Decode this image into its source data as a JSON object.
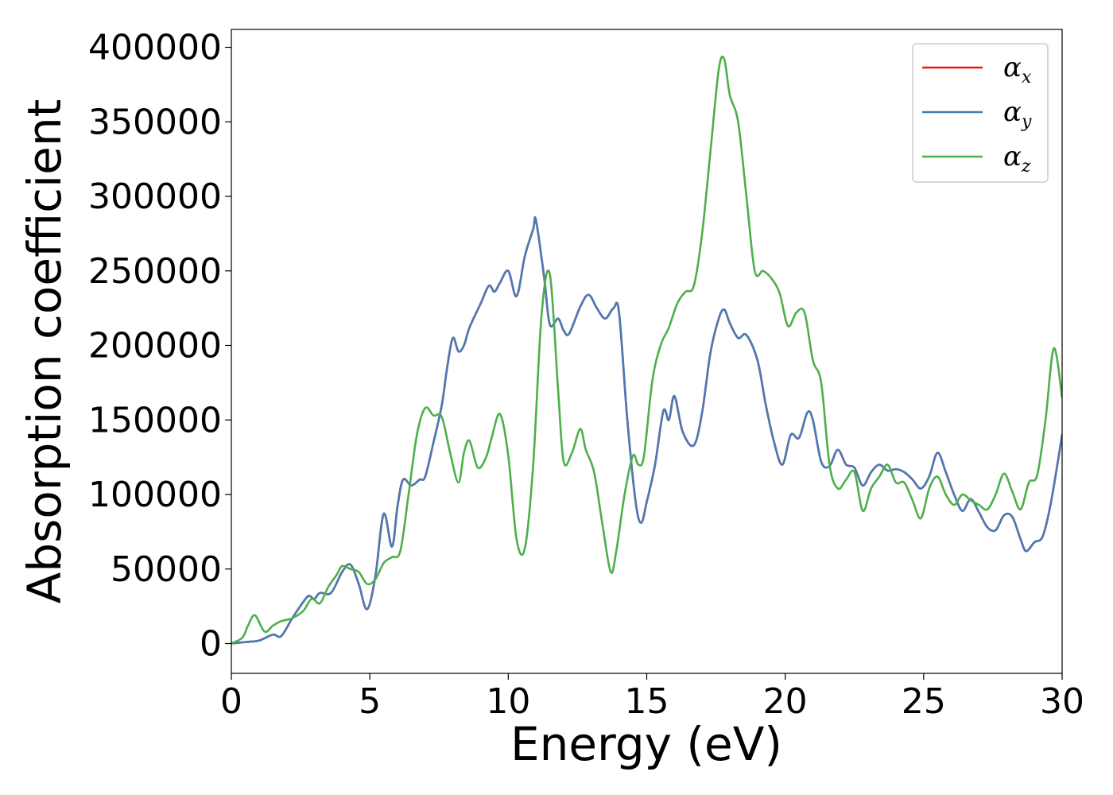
{
  "chart_data": {
    "type": "line",
    "xlabel": "Energy (eV)",
    "ylabel": "Absorption coefficient",
    "xlim": [
      0,
      30
    ],
    "ylim": [
      -20000,
      412000
    ],
    "xticks": [
      0,
      5,
      10,
      15,
      20,
      25,
      30
    ],
    "yticks": [
      0,
      50000,
      100000,
      150000,
      200000,
      250000,
      300000,
      350000,
      400000
    ],
    "grid": false,
    "legend_position": "top-right",
    "series": [
      {
        "name": "αx",
        "symbol": "α",
        "subscript": "x",
        "color": "#e41a1c",
        "x": [
          0,
          0.5,
          1,
          1.5,
          1.8,
          2.2,
          2.6,
          2.8,
          3.0,
          3.2,
          3.6,
          4.0,
          4.3,
          4.6,
          4.9,
          5.2,
          5.5,
          5.8,
          6.0,
          6.2,
          6.5,
          6.8,
          7.0,
          7.3,
          7.6,
          7.8,
          8.0,
          8.2,
          8.4,
          8.6,
          9.0,
          9.3,
          9.5,
          9.7,
          10.0,
          10.3,
          10.6,
          10.9,
          11.0,
          11.3,
          11.5,
          11.8,
          12.0,
          12.2,
          12.6,
          12.9,
          13.2,
          13.5,
          13.8,
          14.0,
          14.3,
          14.6,
          14.8,
          15.0,
          15.3,
          15.6,
          15.8,
          16.0,
          16.3,
          16.7,
          17.0,
          17.3,
          17.6,
          17.8,
          18.0,
          18.3,
          18.6,
          19.0,
          19.3,
          19.6,
          19.9,
          20.2,
          20.5,
          20.8,
          21.0,
          21.3,
          21.6,
          21.9,
          22.2,
          22.5,
          22.8,
          23.1,
          23.4,
          23.7,
          24.0,
          24.3,
          24.6,
          24.9,
          25.2,
          25.5,
          25.8,
          26.1,
          26.4,
          26.7,
          27.0,
          27.3,
          27.6,
          27.9,
          28.2,
          28.5,
          28.7,
          29.0,
          29.3,
          29.6,
          30.0
        ],
        "y": [
          0,
          1000,
          2000,
          6000,
          5000,
          17000,
          28000,
          32000,
          30000,
          34000,
          34000,
          48000,
          53000,
          40000,
          23000,
          45000,
          87000,
          65000,
          92000,
          110000,
          106000,
          110000,
          112000,
          135000,
          160000,
          186000,
          205000,
          196000,
          200000,
          212000,
          228000,
          240000,
          236000,
          242000,
          250000,
          233000,
          260000,
          278000,
          284000,
          245000,
          214000,
          218000,
          210000,
          208000,
          226000,
          234000,
          225000,
          218000,
          225000,
          222000,
          150000,
          95000,
          81000,
          95000,
          120000,
          156000,
          150000,
          166000,
          142000,
          133000,
          155000,
          195000,
          218000,
          224000,
          215000,
          205000,
          207000,
          190000,
          160000,
          135000,
          120000,
          140000,
          138000,
          155000,
          150000,
          122000,
          119000,
          130000,
          120000,
          118000,
          106000,
          115000,
          120000,
          116000,
          117000,
          115000,
          110000,
          104000,
          112000,
          128000,
          115000,
          100000,
          89000,
          97000,
          88000,
          78000,
          76000,
          86000,
          85000,
          70000,
          62000,
          68000,
          72000,
          95000,
          140000
        ]
      },
      {
        "name": "αy",
        "symbol": "α",
        "subscript": "y",
        "color": "#4a7ab5",
        "x": [
          0,
          0.5,
          1,
          1.5,
          1.8,
          2.2,
          2.6,
          2.8,
          3.0,
          3.2,
          3.6,
          4.0,
          4.3,
          4.6,
          4.9,
          5.2,
          5.5,
          5.8,
          6.0,
          6.2,
          6.5,
          6.8,
          7.0,
          7.3,
          7.6,
          7.8,
          8.0,
          8.2,
          8.4,
          8.6,
          9.0,
          9.3,
          9.5,
          9.7,
          10.0,
          10.3,
          10.6,
          10.9,
          11.0,
          11.3,
          11.5,
          11.8,
          12.0,
          12.2,
          12.6,
          12.9,
          13.2,
          13.5,
          13.8,
          14.0,
          14.3,
          14.6,
          14.8,
          15.0,
          15.3,
          15.6,
          15.8,
          16.0,
          16.3,
          16.7,
          17.0,
          17.3,
          17.6,
          17.8,
          18.0,
          18.3,
          18.6,
          19.0,
          19.3,
          19.6,
          19.9,
          20.2,
          20.5,
          20.8,
          21.0,
          21.3,
          21.6,
          21.9,
          22.2,
          22.5,
          22.8,
          23.1,
          23.4,
          23.7,
          24.0,
          24.3,
          24.6,
          24.9,
          25.2,
          25.5,
          25.8,
          26.1,
          26.4,
          26.7,
          27.0,
          27.3,
          27.6,
          27.9,
          28.2,
          28.5,
          28.7,
          29.0,
          29.3,
          29.6,
          30.0
        ],
        "y": [
          0,
          1000,
          2000,
          6000,
          5000,
          17000,
          28000,
          32000,
          30000,
          34000,
          34000,
          48000,
          53000,
          40000,
          23000,
          45000,
          87000,
          65000,
          92000,
          110000,
          106000,
          110000,
          112000,
          135000,
          160000,
          186000,
          205000,
          196000,
          200000,
          212000,
          228000,
          240000,
          236000,
          242000,
          250000,
          233000,
          260000,
          278000,
          284000,
          245000,
          214000,
          218000,
          210000,
          208000,
          226000,
          234000,
          225000,
          218000,
          225000,
          222000,
          150000,
          95000,
          81000,
          95000,
          120000,
          156000,
          150000,
          166000,
          142000,
          133000,
          155000,
          195000,
          218000,
          224000,
          215000,
          205000,
          207000,
          190000,
          160000,
          135000,
          120000,
          140000,
          138000,
          155000,
          150000,
          122000,
          119000,
          130000,
          120000,
          118000,
          106000,
          115000,
          120000,
          116000,
          117000,
          115000,
          110000,
          104000,
          112000,
          128000,
          115000,
          100000,
          89000,
          97000,
          88000,
          78000,
          76000,
          86000,
          85000,
          70000,
          62000,
          68000,
          72000,
          95000,
          140000
        ]
      },
      {
        "name": "αz",
        "symbol": "α",
        "subscript": "z",
        "color": "#4daf4a",
        "x": [
          0,
          0.4,
          0.6,
          0.85,
          1.2,
          1.5,
          1.8,
          2.2,
          2.6,
          2.9,
          3.2,
          3.5,
          3.8,
          4.0,
          4.3,
          4.6,
          4.9,
          5.2,
          5.5,
          5.8,
          6.1,
          6.4,
          6.7,
          7.0,
          7.3,
          7.6,
          7.9,
          8.2,
          8.4,
          8.6,
          8.9,
          9.2,
          9.4,
          9.7,
          10.0,
          10.3,
          10.6,
          10.9,
          11.2,
          11.5,
          11.8,
          12.0,
          12.3,
          12.6,
          12.8,
          13.1,
          13.4,
          13.7,
          13.9,
          14.2,
          14.5,
          14.7,
          14.9,
          15.2,
          15.5,
          15.8,
          16.1,
          16.4,
          16.7,
          17.0,
          17.3,
          17.6,
          17.8,
          18.0,
          18.3,
          18.6,
          18.9,
          19.2,
          19.5,
          19.8,
          20.1,
          20.4,
          20.7,
          21.0,
          21.3,
          21.6,
          21.9,
          22.2,
          22.5,
          22.8,
          23.1,
          23.4,
          23.7,
          24.0,
          24.3,
          24.6,
          24.9,
          25.2,
          25.5,
          25.8,
          26.1,
          26.4,
          26.7,
          27.0,
          27.3,
          27.6,
          27.9,
          28.2,
          28.5,
          28.8,
          29.1,
          29.4,
          29.7,
          30.0
        ],
        "y": [
          0,
          4000,
          12000,
          19000,
          8000,
          12000,
          15000,
          17000,
          22000,
          30000,
          27000,
          38000,
          46000,
          52000,
          50000,
          48000,
          40000,
          43000,
          54000,
          58000,
          62000,
          100000,
          140000,
          158000,
          153000,
          152000,
          128000,
          108000,
          128000,
          136000,
          118000,
          125000,
          138000,
          154000,
          126000,
          70000,
          64000,
          120000,
          220000,
          248000,
          170000,
          122000,
          128000,
          144000,
          130000,
          115000,
          80000,
          48000,
          62000,
          100000,
          126000,
          120000,
          126000,
          176000,
          200000,
          212000,
          228000,
          236000,
          240000,
          275000,
          330000,
          385000,
          392000,
          368000,
          350000,
          300000,
          250000,
          250000,
          245000,
          235000,
          213000,
          222000,
          222000,
          190000,
          175000,
          120000,
          104000,
          110000,
          115000,
          89000,
          104000,
          112000,
          120000,
          108000,
          108000,
          96000,
          84000,
          104000,
          112000,
          100000,
          93000,
          100000,
          96000,
          93000,
          90000,
          100000,
          114000,
          102000,
          90000,
          108000,
          113000,
          150000,
          198000,
          165000
        ]
      }
    ]
  }
}
